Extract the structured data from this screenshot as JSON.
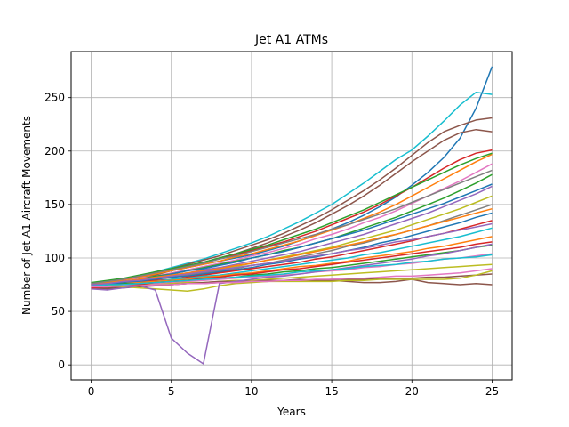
{
  "chart_data": {
    "type": "line",
    "title": "Jet A1 ATMs",
    "xlabel": "Years",
    "ylabel": "Number of Jet A1 Aircraft Movements",
    "xlim": [
      -1.25,
      26.25
    ],
    "ylim": [
      -14,
      293
    ],
    "x_ticks": [
      0,
      5,
      10,
      15,
      20,
      25
    ],
    "y_ticks": [
      0,
      50,
      100,
      150,
      200,
      250
    ],
    "grid": true,
    "x": [
      0,
      1,
      2,
      3,
      4,
      5,
      6,
      7,
      8,
      9,
      10,
      11,
      12,
      13,
      14,
      15,
      16,
      17,
      18,
      19,
      20,
      21,
      22,
      23,
      24,
      25
    ],
    "series": [
      {
        "color": "#1f77b4",
        "values": [
          76,
          77,
          79,
          82,
          85,
          88,
          91,
          94,
          97,
          100,
          103,
          107,
          111,
          116,
          121,
          127,
          133,
          140,
          148,
          157,
          168,
          180,
          194,
          212,
          240,
          279
        ]
      },
      {
        "color": "#17becf",
        "values": [
          74,
          76,
          79,
          83,
          87,
          91,
          95,
          99,
          104,
          109,
          114,
          120,
          127,
          134,
          142,
          150,
          160,
          170,
          181,
          192,
          201,
          214,
          228,
          243,
          255,
          253
        ]
      },
      {
        "color": "#8c564b",
        "values": [
          75,
          77,
          80,
          83,
          87,
          90,
          94,
          98,
          102,
          107,
          112,
          117,
          123,
          130,
          137,
          145,
          154,
          163,
          173,
          184,
          196,
          208,
          218,
          224,
          229,
          231
        ]
      },
      {
        "color": "#8c564b",
        "values": [
          73,
          75,
          78,
          81,
          84,
          88,
          92,
          96,
          100,
          104,
          109,
          114,
          120,
          126,
          133,
          141,
          149,
          158,
          168,
          179,
          190,
          200,
          210,
          217,
          220,
          218
        ]
      },
      {
        "color": "#d62728",
        "values": [
          76,
          78,
          80,
          83,
          86,
          89,
          92,
          96,
          99,
          103,
          107,
          111,
          115,
          120,
          125,
          131,
          137,
          143,
          150,
          158,
          166,
          175,
          184,
          192,
          198,
          201
        ]
      },
      {
        "color": "#ff7f0e",
        "values": [
          75,
          77,
          79,
          82,
          85,
          88,
          91,
          94,
          97,
          101,
          104,
          108,
          112,
          116,
          121,
          126,
          131,
          137,
          143,
          150,
          158,
          166,
          174,
          182,
          190,
          197
        ]
      },
      {
        "color": "#e377c2",
        "values": [
          74,
          76,
          78,
          81,
          83,
          86,
          89,
          92,
          95,
          98,
          102,
          105,
          109,
          113,
          118,
          122,
          127,
          133,
          138,
          144,
          151,
          158,
          165,
          172,
          180,
          188
        ]
      },
      {
        "color": "#2ca02c",
        "values": [
          75,
          76,
          78,
          80,
          83,
          85,
          88,
          91,
          94,
          97,
          100,
          103,
          107,
          110,
          114,
          118,
          123,
          128,
          133,
          138,
          144,
          150,
          156,
          163,
          170,
          178
        ]
      },
      {
        "color": "#9467bd",
        "values": [
          74,
          75,
          77,
          79,
          81,
          84,
          86,
          89,
          91,
          94,
          97,
          100,
          103,
          106,
          110,
          114,
          118,
          122,
          127,
          132,
          137,
          142,
          148,
          154,
          160,
          167
        ]
      },
      {
        "color": "#bcbd22",
        "values": [
          75,
          76,
          77,
          79,
          81,
          83,
          85,
          87,
          90,
          92,
          95,
          98,
          101,
          104,
          107,
          110,
          114,
          118,
          122,
          126,
          131,
          136,
          141,
          146,
          152,
          158
        ]
      },
      {
        "color": "#7f7f7f",
        "values": [
          74,
          75,
          76,
          78,
          80,
          82,
          84,
          86,
          88,
          90,
          93,
          95,
          98,
          101,
          104,
          107,
          111,
          114,
          118,
          122,
          126,
          130,
          135,
          140,
          145,
          150
        ]
      },
      {
        "color": "#1f77b4",
        "values": [
          75,
          76,
          77,
          78,
          80,
          82,
          83,
          85,
          87,
          89,
          91,
          94,
          96,
          99,
          101,
          104,
          107,
          110,
          114,
          117,
          121,
          125,
          129,
          133,
          138,
          142
        ]
      },
      {
        "color": "#d62728",
        "values": [
          74,
          75,
          76,
          77,
          79,
          80,
          82,
          84,
          86,
          88,
          90,
          92,
          94,
          96,
          99,
          101,
          104,
          107,
          110,
          113,
          116,
          120,
          123,
          127,
          131,
          135
        ]
      },
      {
        "color": "#17becf",
        "values": [
          75,
          75,
          76,
          77,
          78,
          80,
          81,
          83,
          84,
          86,
          88,
          90,
          92,
          94,
          96,
          98,
          100,
          103,
          105,
          108,
          111,
          114,
          117,
          120,
          124,
          128
        ]
      },
      {
        "color": "#ff7f0e",
        "values": [
          74,
          75,
          76,
          77,
          78,
          79,
          80,
          82,
          83,
          85,
          86,
          88,
          90,
          92,
          93,
          95,
          97,
          100,
          102,
          104,
          106,
          109,
          111,
          114,
          117,
          120
        ]
      },
      {
        "color": "#2ca02c",
        "values": [
          75,
          75,
          76,
          76,
          77,
          78,
          79,
          80,
          81,
          82,
          84,
          85,
          87,
          88,
          90,
          91,
          93,
          95,
          97,
          99,
          101,
          103,
          105,
          107,
          110,
          112
        ]
      },
      {
        "color": "#e377c2",
        "values": [
          74,
          74,
          75,
          76,
          76,
          77,
          78,
          79,
          80,
          81,
          82,
          83,
          84,
          85,
          87,
          88,
          89,
          91,
          92,
          94,
          95,
          97,
          99,
          100,
          102,
          104
        ]
      },
      {
        "color": "#bcbd22",
        "values": [
          73,
          74,
          74,
          75,
          75,
          76,
          77,
          77,
          78,
          79,
          79,
          80,
          81,
          82,
          83,
          84,
          85,
          86,
          87,
          88,
          89,
          90,
          91,
          92,
          93,
          94
        ]
      },
      {
        "color": "#8c564b",
        "values": [
          71,
          72,
          73,
          74,
          74,
          75,
          76,
          76,
          77,
          77,
          78,
          78,
          79,
          79,
          79,
          80,
          80,
          80,
          81,
          81,
          81,
          82,
          82,
          83,
          84,
          85
        ]
      },
      {
        "color": "#8c564b",
        "values": [
          72,
          71,
          72,
          73,
          74,
          75,
          76,
          77,
          78,
          78,
          78,
          79,
          79,
          80,
          79,
          79,
          78,
          77,
          77,
          78,
          80,
          77,
          76,
          75,
          76,
          75
        ]
      },
      {
        "color": "#bcbd22",
        "values": [
          75,
          74,
          73,
          72,
          71,
          70,
          69,
          71,
          74,
          76,
          77,
          78,
          78,
          78,
          78,
          78,
          79,
          79,
          80,
          80,
          80,
          80,
          80,
          81,
          84,
          88
        ]
      },
      {
        "color": "#9467bd",
        "values": [
          71,
          70,
          72,
          74,
          70,
          25,
          11,
          1,
          76,
          78,
          80,
          82,
          83,
          85,
          87,
          89,
          91,
          93,
          95,
          97,
          99,
          102,
          104,
          107,
          110,
          113
        ]
      },
      {
        "color": "#2ca02c",
        "values": [
          77,
          79,
          81,
          84,
          87,
          90,
          93,
          96,
          100,
          104,
          108,
          112,
          117,
          122,
          127,
          133,
          139,
          145,
          152,
          159,
          166,
          173,
          180,
          187,
          193,
          198
        ]
      },
      {
        "color": "#1f77b4",
        "values": [
          73,
          75,
          77,
          80,
          82,
          85,
          88,
          90,
          93,
          96,
          100,
          103,
          106,
          110,
          114,
          118,
          122,
          126,
          131,
          136,
          141,
          146,
          151,
          157,
          163,
          169
        ]
      },
      {
        "color": "#ff7f0e",
        "values": [
          76,
          77,
          78,
          80,
          82,
          84,
          86,
          88,
          90,
          93,
          95,
          98,
          100,
          103,
          106,
          109,
          112,
          115,
          119,
          122,
          126,
          130,
          134,
          138,
          142,
          146
        ]
      },
      {
        "color": "#d62728",
        "values": [
          72,
          73,
          74,
          75,
          77,
          78,
          79,
          81,
          82,
          84,
          85,
          87,
          89,
          90,
          92,
          94,
          96,
          98,
          100,
          102,
          104,
          106,
          108,
          110,
          113,
          115
        ]
      },
      {
        "color": "#17becf",
        "values": [
          74,
          75,
          75,
          76,
          77,
          78,
          79,
          80,
          81,
          82,
          83,
          84,
          85,
          87,
          88,
          89,
          90,
          92,
          93,
          94,
          96,
          97,
          99,
          100,
          101,
          103
        ]
      },
      {
        "color": "#e377c2",
        "values": [
          73,
          73,
          74,
          74,
          75,
          75,
          76,
          76,
          77,
          77,
          78,
          78,
          79,
          79,
          80,
          80,
          81,
          81,
          82,
          83,
          83,
          84,
          85,
          86,
          88,
          90
        ]
      },
      {
        "color": "#7f7f7f",
        "values": [
          76,
          78,
          80,
          83,
          86,
          89,
          92,
          95,
          99,
          102,
          106,
          110,
          114,
          118,
          122,
          127,
          131,
          136,
          141,
          146,
          152,
          158,
          164,
          170,
          176,
          182
        ]
      },
      {
        "color": "#9467bd",
        "values": [
          75,
          76,
          78,
          79,
          81,
          83,
          85,
          87,
          89,
          91,
          93,
          95,
          97,
          100,
          102,
          104,
          107,
          109,
          112,
          115,
          117,
          120,
          123,
          126,
          129,
          132
        ]
      }
    ]
  }
}
